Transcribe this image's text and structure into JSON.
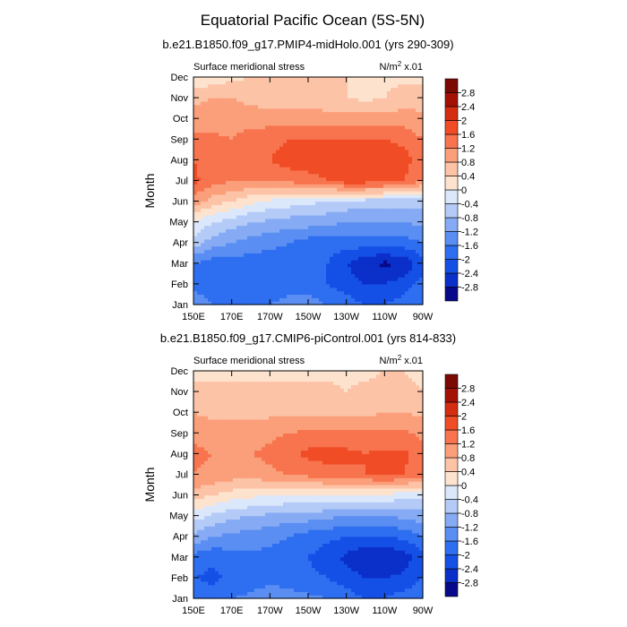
{
  "figure": {
    "title": "Equatorial Pacific Ocean (5S-5N)"
  },
  "chart_data": [
    {
      "type": "heatmap",
      "title": "b.e21.B1850.f09_g17.PMIP4-midHolo.001 (yrs 290-309)",
      "left_label": "Surface meridional stress",
      "units_base": "N/m",
      "units_exp": "2",
      "units_scale": " x.01",
      "ylabel": "Month",
      "x_ticks": [
        "150E",
        "170E",
        "170W",
        "150W",
        "130W",
        "110W",
        "90W"
      ],
      "y_ticks": [
        "Jan",
        "Feb",
        "Mar",
        "Apr",
        "May",
        "Jun",
        "Jul",
        "Aug",
        "Sep",
        "Oct",
        "Nov",
        "Dec"
      ],
      "x_range": [
        150,
        270
      ],
      "colorbar_levels": [
        -2.8,
        -2.4,
        -2,
        -1.6,
        -1.2,
        -0.8,
        -0.4,
        0,
        0.4,
        0.8,
        1.2,
        1.6,
        2,
        2.4,
        2.8
      ],
      "colorbar_labels": [
        "-2.8",
        "-2.4",
        "-2",
        "-1.6",
        "-1.2",
        "-0.8",
        "-0.4",
        "0",
        "0.4",
        "0.8",
        "1.2",
        "1.6",
        "2",
        "2.4",
        "2.8"
      ],
      "colors": [
        "#08088a",
        "#0b2fc9",
        "#1550e6",
        "#2e6ef0",
        "#5a8ef2",
        "#86abf4",
        "#b4cbf7",
        "#dbe7fb",
        "#fde3ce",
        "#fcc3a6",
        "#fb9f7b",
        "#f7744e",
        "#f04d26",
        "#d52d10",
        "#a31106",
        "#7b0a02"
      ],
      "x_lon": [
        150,
        160,
        170,
        180,
        190,
        200,
        210,
        220,
        230,
        240,
        250,
        260,
        270
      ],
      "rows": [
        {
          "month": "Jan",
          "values": [
            -1.2,
            -1.6,
            -1.8,
            -1.8,
            -1.6,
            -1.4,
            -1.4,
            -1.6,
            -1.8,
            -2.0,
            -2.0,
            -1.8,
            -1.6
          ]
        },
        {
          "month": "Feb",
          "values": [
            -1.8,
            -2.0,
            -2.0,
            -2.0,
            -1.9,
            -1.8,
            -1.8,
            -2.0,
            -2.2,
            -2.4,
            -2.4,
            -2.2,
            -1.8
          ]
        },
        {
          "month": "Mar",
          "values": [
            -1.6,
            -1.8,
            -1.8,
            -1.8,
            -1.8,
            -1.8,
            -1.8,
            -2.0,
            -2.4,
            -2.7,
            -2.9,
            -2.7,
            -2.2
          ]
        },
        {
          "month": "Apr",
          "values": [
            -0.6,
            -1.0,
            -1.2,
            -1.4,
            -1.5,
            -1.6,
            -1.8,
            -1.8,
            -1.8,
            -1.8,
            -1.8,
            -1.8,
            -1.6
          ]
        },
        {
          "month": "May",
          "values": [
            0.0,
            -0.4,
            -0.6,
            -0.8,
            -0.9,
            -1.0,
            -1.0,
            -1.1,
            -1.2,
            -1.2,
            -1.2,
            -1.2,
            -1.1
          ]
        },
        {
          "month": "Jun",
          "values": [
            1.0,
            0.6,
            0.4,
            0.1,
            -0.1,
            -0.2,
            -0.3,
            -0.4,
            -0.5,
            -0.6,
            -0.6,
            -0.6,
            -0.6
          ]
        },
        {
          "month": "Jul",
          "values": [
            1.7,
            1.4,
            1.2,
            1.2,
            1.2,
            1.3,
            1.4,
            1.6,
            1.8,
            1.8,
            1.8,
            1.6,
            1.2
          ]
        },
        {
          "month": "Aug",
          "values": [
            1.6,
            1.4,
            1.4,
            1.5,
            1.6,
            1.8,
            1.9,
            1.9,
            1.9,
            1.9,
            1.9,
            1.8,
            1.3
          ]
        },
        {
          "month": "Sep",
          "values": [
            1.3,
            1.3,
            1.2,
            1.4,
            1.5,
            1.6,
            1.6,
            1.6,
            1.6,
            1.6,
            1.6,
            1.5,
            1.2
          ]
        },
        {
          "month": "Oct",
          "values": [
            1.0,
            1.0,
            1.0,
            1.0,
            1.0,
            1.0,
            1.0,
            1.0,
            1.0,
            1.0,
            1.0,
            1.0,
            0.9
          ]
        },
        {
          "month": "Nov",
          "values": [
            0.7,
            0.8,
            0.8,
            0.7,
            0.6,
            0.6,
            0.6,
            0.5,
            0.4,
            0.3,
            0.4,
            0.6,
            0.6
          ]
        },
        {
          "month": "Dec",
          "values": [
            0.0,
            0.2,
            0.3,
            0.4,
            0.4,
            0.4,
            0.4,
            0.4,
            0.4,
            0.3,
            0.3,
            0.3,
            0.3
          ]
        }
      ]
    },
    {
      "type": "heatmap",
      "title": "b.e21.B1850.f09_g17.CMIP6-piControl.001 (yrs 814-833)",
      "left_label": "Surface meridional stress",
      "units_base": "N/m",
      "units_exp": "2",
      "units_scale": " x.01",
      "ylabel": "Month",
      "x_ticks": [
        "150E",
        "170E",
        "170W",
        "150W",
        "130W",
        "110W",
        "90W"
      ],
      "y_ticks": [
        "Jan",
        "Feb",
        "Mar",
        "Apr",
        "May",
        "Jun",
        "Jul",
        "Aug",
        "Sep",
        "Oct",
        "Nov",
        "Dec"
      ],
      "x_range": [
        150,
        270
      ],
      "colorbar_levels": [
        -2.8,
        -2.4,
        -2,
        -1.6,
        -1.2,
        -0.8,
        -0.4,
        0,
        0.4,
        0.8,
        1.2,
        1.6,
        2,
        2.4,
        2.8
      ],
      "colorbar_labels": [
        "-2.8",
        "-2.4",
        "-2",
        "-1.6",
        "-1.2",
        "-0.8",
        "-0.4",
        "0",
        "0.4",
        "0.8",
        "1.2",
        "1.6",
        "2",
        "2.4",
        "2.8"
      ],
      "colors": [
        "#08088a",
        "#0b2fc9",
        "#1550e6",
        "#2e6ef0",
        "#5a8ef2",
        "#86abf4",
        "#b4cbf7",
        "#dbe7fb",
        "#fde3ce",
        "#fcc3a6",
        "#fb9f7b",
        "#f7744e",
        "#f04d26",
        "#d52d10",
        "#a31106",
        "#7b0a02"
      ],
      "x_lon": [
        150,
        160,
        170,
        180,
        190,
        200,
        210,
        220,
        230,
        240,
        250,
        260,
        270
      ],
      "rows": [
        {
          "month": "Jan",
          "values": [
            -1.6,
            -1.8,
            -1.6,
            -1.5,
            -1.4,
            -1.4,
            -1.5,
            -1.6,
            -1.8,
            -2.0,
            -2.0,
            -1.8,
            -1.6
          ]
        },
        {
          "month": "Feb",
          "values": [
            -2.0,
            -2.1,
            -1.9,
            -1.8,
            -1.7,
            -1.8,
            -1.9,
            -2.0,
            -2.2,
            -2.4,
            -2.4,
            -2.3,
            -2.0
          ]
        },
        {
          "month": "Mar",
          "values": [
            -1.8,
            -1.9,
            -1.8,
            -1.7,
            -1.7,
            -1.8,
            -2.0,
            -2.2,
            -2.5,
            -2.8,
            -2.8,
            -2.6,
            -2.2
          ]
        },
        {
          "month": "Apr",
          "values": [
            -0.9,
            -1.2,
            -1.3,
            -1.4,
            -1.5,
            -1.6,
            -1.8,
            -1.9,
            -2.0,
            -2.0,
            -2.0,
            -1.9,
            -1.6
          ]
        },
        {
          "month": "May",
          "values": [
            -0.2,
            -0.5,
            -0.7,
            -0.8,
            -0.9,
            -1.0,
            -1.0,
            -1.1,
            -1.2,
            -1.3,
            -1.2,
            -1.1,
            -1.0
          ]
        },
        {
          "month": "Jun",
          "values": [
            0.6,
            0.4,
            0.2,
            0.1,
            0.0,
            0.0,
            0.0,
            0.0,
            0.0,
            -0.1,
            -0.1,
            -0.2,
            -0.2
          ]
        },
        {
          "month": "Jul",
          "values": [
            1.2,
            1.1,
            1.0,
            1.0,
            1.1,
            1.2,
            1.3,
            1.4,
            1.5,
            1.6,
            1.7,
            1.6,
            1.3
          ]
        },
        {
          "month": "Aug",
          "values": [
            1.3,
            1.2,
            1.1,
            1.2,
            1.3,
            1.5,
            1.7,
            1.8,
            1.7,
            1.6,
            1.7,
            1.7,
            1.4
          ]
        },
        {
          "month": "Sep",
          "values": [
            1.1,
            1.0,
            1.0,
            1.0,
            1.1,
            1.2,
            1.3,
            1.3,
            1.3,
            1.3,
            1.3,
            1.3,
            1.1
          ]
        },
        {
          "month": "Oct",
          "values": [
            0.8,
            0.7,
            0.7,
            0.7,
            0.7,
            0.7,
            0.7,
            0.7,
            0.7,
            0.7,
            0.8,
            0.8,
            0.7
          ]
        },
        {
          "month": "Nov",
          "values": [
            0.5,
            0.5,
            0.5,
            0.5,
            0.5,
            0.5,
            0.5,
            0.5,
            0.4,
            0.5,
            0.6,
            0.5,
            0.4
          ]
        },
        {
          "month": "Dec",
          "values": [
            0.3,
            0.3,
            0.3,
            0.3,
            0.3,
            0.3,
            0.3,
            0.3,
            0.3,
            0.3,
            0.4,
            0.4,
            0.3
          ]
        }
      ]
    }
  ]
}
